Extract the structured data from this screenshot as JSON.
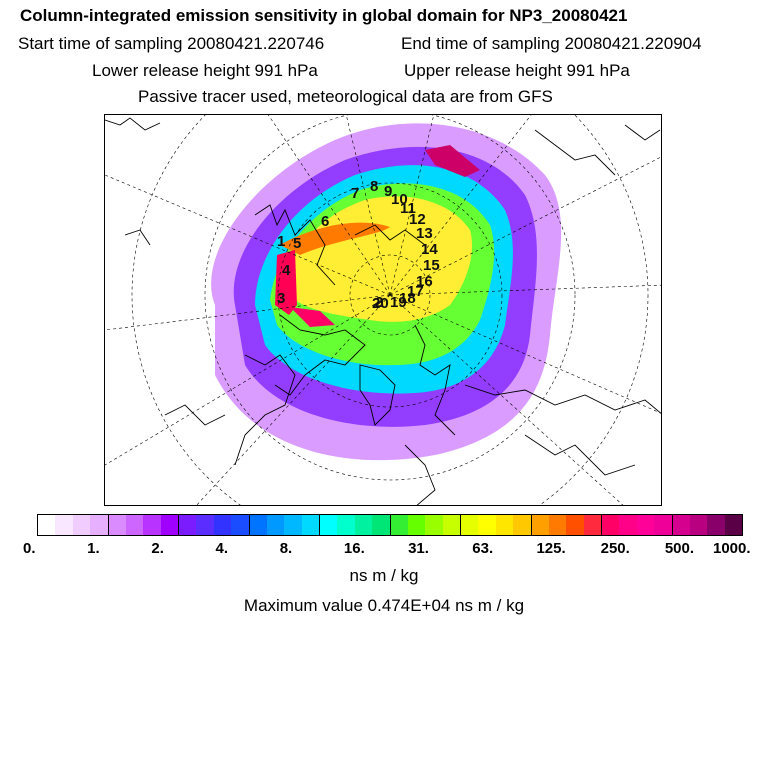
{
  "header": {
    "title": "Column-integrated emission sensitivity in global domain for NP3_20080421",
    "start": "Start time of sampling 20080421.220746",
    "end": "End time of sampling 20080421.220904",
    "lower": "Lower release height  991 hPa",
    "upper": "Upper release height  991 hPa",
    "tracer": "Passive tracer used, meteorological data are from GFS"
  },
  "map": {
    "track_labels": [
      "1",
      "2",
      "3",
      "4",
      "5",
      "6",
      "7",
      "8",
      "9",
      "10",
      "11",
      "12",
      "13",
      "14",
      "15",
      "16",
      "17",
      "18",
      "19",
      "20"
    ]
  },
  "colorbar": {
    "colors": [
      "#ffffff",
      "#f9e6ff",
      "#f1ccff",
      "#e6b0ff",
      "#da8cff",
      "#cc66ff",
      "#b833ff",
      "#9f00ff",
      "#7a1cff",
      "#5b2dff",
      "#3333ff",
      "#1a4dff",
      "#0073ff",
      "#0099ff",
      "#00b8ff",
      "#00d9ff",
      "#00ffff",
      "#00ffcc",
      "#00f2a0",
      "#00e676",
      "#33ee33",
      "#66ff00",
      "#99ff00",
      "#c8ff00",
      "#e6ff00",
      "#ffff00",
      "#ffe600",
      "#ffc800",
      "#ffa000",
      "#ff7a00",
      "#ff5000",
      "#ff2a3d",
      "#ff0066",
      "#ff0088",
      "#ff0099",
      "#ee0099",
      "#d6008f",
      "#b80080",
      "#8a006a",
      "#5a0046"
    ],
    "tick_labels": [
      "0.",
      "1.",
      "2.",
      "4.",
      "8.",
      "16.",
      "31.",
      "63.",
      "125.",
      "250.",
      "500.",
      "1000."
    ],
    "units": "ns m / kg",
    "max_text": "Maximum value  0.474E+04 ns m / kg"
  }
}
